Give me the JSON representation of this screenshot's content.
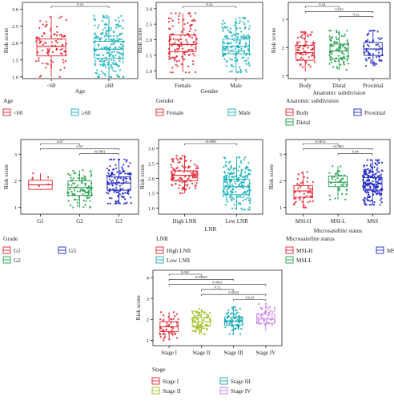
{
  "chart_data": [
    {
      "type": "box",
      "xlabel": "Age",
      "ylabel": "Risk score",
      "yticks": [
        1.0,
        1.5,
        2.0,
        2.5,
        3.0
      ],
      "ylim": [
        0.95,
        3.2
      ],
      "tick_labels": [
        "1.0",
        "1.5",
        "2.0",
        "2.5",
        "3.0"
      ],
      "categories": [
        "<60",
        "≥60"
      ],
      "colors": [
        "#e4222f",
        "#17b1b9"
      ],
      "boxes": [
        {
          "min": 1.0,
          "q1": 1.62,
          "median": 1.9,
          "q3": 2.12,
          "max": 2.78,
          "n": 90
        },
        {
          "min": 1.0,
          "q1": 1.55,
          "median": 1.82,
          "q3": 2.05,
          "max": 2.8,
          "n": 210
        }
      ],
      "pvalues": [
        {
          "from": 0,
          "to": 1,
          "label": "0.23"
        }
      ],
      "legend_title": "Age",
      "legend": [
        [
          "<60",
          "≥60"
        ]
      ]
    },
    {
      "type": "box",
      "xlabel": "Gender",
      "ylabel": "Risk score",
      "yticks": [
        1.0,
        1.5,
        2.0,
        2.5,
        3.0
      ],
      "ylim": [
        0.75,
        3.2
      ],
      "tick_labels": [
        "1.0",
        "1.5",
        "2.0",
        "2.5",
        "3.0"
      ],
      "categories": [
        "Female",
        "Male"
      ],
      "colors": [
        "#e4222f",
        "#17b1b9"
      ],
      "boxes": [
        {
          "min": 0.95,
          "q1": 1.62,
          "median": 1.85,
          "q3": 2.15,
          "max": 2.85,
          "n": 130
        },
        {
          "min": 0.95,
          "q1": 1.55,
          "median": 1.78,
          "q3": 2.02,
          "max": 2.7,
          "n": 160
        }
      ],
      "pvalues": [
        {
          "from": 0,
          "to": 1,
          "label": "0.24"
        }
      ],
      "legend_title": "Gender",
      "legend": [
        [
          "Female",
          "Male"
        ]
      ]
    },
    {
      "type": "box",
      "xlabel": "Anatomic subdivision",
      "ylabel": "Risk score",
      "yticks": [
        1,
        2,
        3
      ],
      "ylim": [
        0.9,
        3.6
      ],
      "tick_labels": [
        "1",
        "2",
        "3"
      ],
      "categories": [
        "Body",
        "Distal",
        "Proximal"
      ],
      "colors": [
        "#e4222f",
        "#1e9e4a",
        "#2027c2"
      ],
      "boxes": [
        {
          "min": 1.15,
          "q1": 1.55,
          "median": 1.82,
          "q3": 2.08,
          "max": 2.55,
          "n": 70
        },
        {
          "min": 1.2,
          "q1": 1.6,
          "median": 1.88,
          "q3": 2.12,
          "max": 2.6,
          "n": 90
        },
        {
          "min": 1.35,
          "q1": 1.72,
          "median": 1.95,
          "q3": 2.18,
          "max": 2.6,
          "n": 60
        }
      ],
      "pvalues": [
        {
          "from": 0,
          "to": 1,
          "label": "0.24"
        },
        {
          "from": 0,
          "to": 2,
          "label": "0.023"
        },
        {
          "from": 1,
          "to": 2,
          "label": "0.22"
        }
      ],
      "legend_title": "Anatomic subdivision",
      "legend": [
        [
          "Body",
          "Proximal"
        ],
        [
          "Distal"
        ]
      ]
    },
    {
      "type": "box",
      "xlabel": "",
      "ylabel": "Risk score",
      "yticks": [
        1,
        2,
        3
      ],
      "ylim": [
        0.75,
        3.55
      ],
      "tick_labels": [
        "1",
        "2",
        "3"
      ],
      "categories": [
        "G1",
        "G2",
        "G3"
      ],
      "colors": [
        "#e4222f",
        "#1e9e4a",
        "#2027c2"
      ],
      "boxes": [
        {
          "min": 1.65,
          "q1": 1.68,
          "median": 1.85,
          "q3": 2.02,
          "max": 2.28,
          "n": 6
        },
        {
          "min": 1.0,
          "q1": 1.45,
          "median": 1.75,
          "q3": 2.0,
          "max": 2.4,
          "n": 100
        },
        {
          "min": 1.15,
          "q1": 1.65,
          "median": 1.92,
          "q3": 2.15,
          "max": 2.8,
          "n": 140
        }
      ],
      "pvalues": [
        {
          "from": 0,
          "to": 1,
          "label": "0.47"
        },
        {
          "from": 0,
          "to": 2,
          "label": "0.59"
        },
        {
          "from": 1,
          "to": 2,
          "label": "<0.0001"
        }
      ],
      "legend_title": "Grade",
      "legend": [
        [
          "G1",
          "G3"
        ],
        [
          "G2"
        ]
      ]
    },
    {
      "type": "box",
      "xlabel": "LNR",
      "ylabel": "Risk score",
      "yticks": [
        1.0,
        1.5,
        2.0,
        2.5,
        3.0
      ],
      "ylim": [
        0.8,
        3.3
      ],
      "tick_labels": [
        "1.0",
        "1.5",
        "2.0",
        "2.5",
        "3.0"
      ],
      "categories": [
        "High LNR",
        "Low LNR"
      ],
      "colors": [
        "#e4222f",
        "#17b1b9"
      ],
      "boxes": [
        {
          "min": 1.5,
          "q1": 1.92,
          "median": 2.1,
          "q3": 2.25,
          "max": 2.78,
          "n": 110
        },
        {
          "min": 0.95,
          "q1": 1.45,
          "median": 1.72,
          "q3": 1.97,
          "max": 2.7,
          "n": 200
        }
      ],
      "pvalues": [
        {
          "from": 0,
          "to": 1,
          "label": "<0.0001"
        }
      ],
      "legend_title": "LNR",
      "legend": [
        [
          "High LNR"
        ],
        [
          "Low LNR"
        ]
      ]
    },
    {
      "type": "box",
      "xlabel": "Microsatellite status",
      "ylabel": "Risk score",
      "yticks": [
        1,
        2,
        3
      ],
      "ylim": [
        0.75,
        3.55
      ],
      "tick_labels": [
        "1",
        "2",
        "3"
      ],
      "categories": [
        "MSI-H",
        "MSI-L",
        "MSS"
      ],
      "colors": [
        "#e4222f",
        "#1e9e4a",
        "#2027c2"
      ],
      "boxes": [
        {
          "min": 1.0,
          "q1": 1.38,
          "median": 1.62,
          "q3": 1.82,
          "max": 2.35,
          "n": 50
        },
        {
          "min": 1.3,
          "q1": 1.78,
          "median": 1.95,
          "q3": 2.18,
          "max": 2.55,
          "n": 40
        },
        {
          "min": 1.1,
          "q1": 1.65,
          "median": 1.88,
          "q3": 2.12,
          "max": 2.78,
          "n": 200
        }
      ],
      "pvalues": [
        {
          "from": 0,
          "to": 1,
          "label": "0.0012"
        },
        {
          "from": 0,
          "to": 2,
          "label": "<0.0001"
        },
        {
          "from": 1,
          "to": 2,
          "label": "0.44"
        }
      ],
      "legend_title": "Microsatellite status",
      "legend": [
        [
          "MSI-H",
          "MSS"
        ],
        [
          "MSI-L"
        ]
      ]
    },
    {
      "type": "box",
      "xlabel": "",
      "ylabel": "Risk score",
      "yticks": [
        1,
        2,
        3,
        4
      ],
      "ylim": [
        0.75,
        4.35
      ],
      "tick_labels": [
        "1",
        "2",
        "3",
        "4"
      ],
      "categories": [
        "Stage I",
        "Stage II",
        "Stage III",
        "Stage IV"
      ],
      "colors": [
        "#e4222f",
        "#9cbf1a",
        "#1aa9b4",
        "#c77de1"
      ],
      "boxes": [
        {
          "min": 1.0,
          "q1": 1.42,
          "median": 1.65,
          "q3": 1.9,
          "max": 2.35,
          "n": 50
        },
        {
          "min": 1.3,
          "q1": 1.68,
          "median": 1.88,
          "q3": 2.08,
          "max": 2.5,
          "n": 80
        },
        {
          "min": 1.3,
          "q1": 1.72,
          "median": 1.92,
          "q3": 2.12,
          "max": 2.6,
          "n": 80
        },
        {
          "min": 1.45,
          "q1": 1.82,
          "median": 2.02,
          "q3": 2.25,
          "max": 2.75,
          "n": 40
        }
      ],
      "pvalues": [
        {
          "from": 0,
          "to": 1,
          "label": "0.061"
        },
        {
          "from": 0,
          "to": 2,
          "label": "0.00093"
        },
        {
          "from": 0,
          "to": 3,
          "label": "0.0061"
        },
        {
          "from": 1,
          "to": 2,
          "label": "0.12"
        },
        {
          "from": 1,
          "to": 3,
          "label": "0.0023"
        },
        {
          "from": 2,
          "to": 3,
          "label": "0.024"
        }
      ],
      "legend_title": "Stage",
      "legend": [
        [
          "Stage I",
          "Stage III"
        ],
        [
          "Stage II",
          "Stage IV"
        ]
      ]
    }
  ]
}
